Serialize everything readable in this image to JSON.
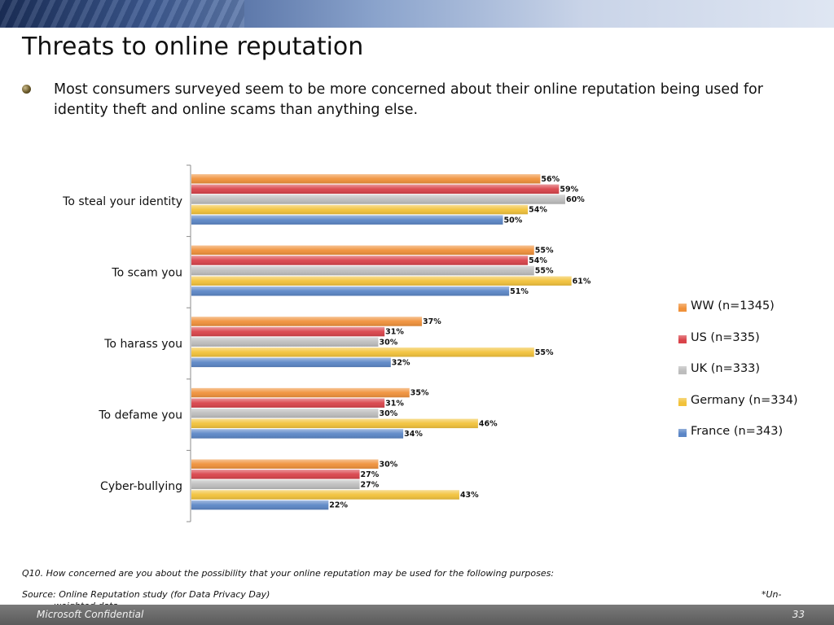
{
  "title": "Threats to online reputation",
  "bullet": "Most consumers surveyed seem to be more concerned about their online reputation being used for identity theft and online scams than anything else.",
  "question": "Q10. How concerned are you about the possibility that your online reputation may be used for the following purposes:",
  "source": "Source: Online Reputation study (for Data Privacy Day)",
  "note_line1": "*Un-",
  "note_line2": "weighted data",
  "footer_left": "Microsoft Confidential",
  "footer_right": "33",
  "chart_data": {
    "type": "bar",
    "orientation": "horizontal",
    "categories": [
      "To steal your identity",
      "To scam you",
      "To harass you",
      "To defame you",
      "Cyber-bullying"
    ],
    "series": [
      {
        "name": "WW (n=1345)",
        "color": "#f0913a",
        "values": [
          56,
          55,
          37,
          35,
          30
        ]
      },
      {
        "name": "US (n=335)",
        "color": "#d9434a",
        "values": [
          59,
          54,
          31,
          31,
          27
        ]
      },
      {
        "name": "UK (n=333)",
        "color": "#bdbdbd",
        "values": [
          60,
          55,
          30,
          30,
          27
        ]
      },
      {
        "name": "Germany (n=334)",
        "color": "#f2c23a",
        "values": [
          54,
          61,
          55,
          46,
          43
        ]
      },
      {
        "name": "France (n=343)",
        "color": "#5b86c6",
        "values": [
          50,
          51,
          32,
          34,
          22
        ]
      }
    ],
    "value_suffix": "%",
    "xlim": [
      0,
      100
    ],
    "data_labels": true,
    "legend_position": "right",
    "grid": false
  }
}
